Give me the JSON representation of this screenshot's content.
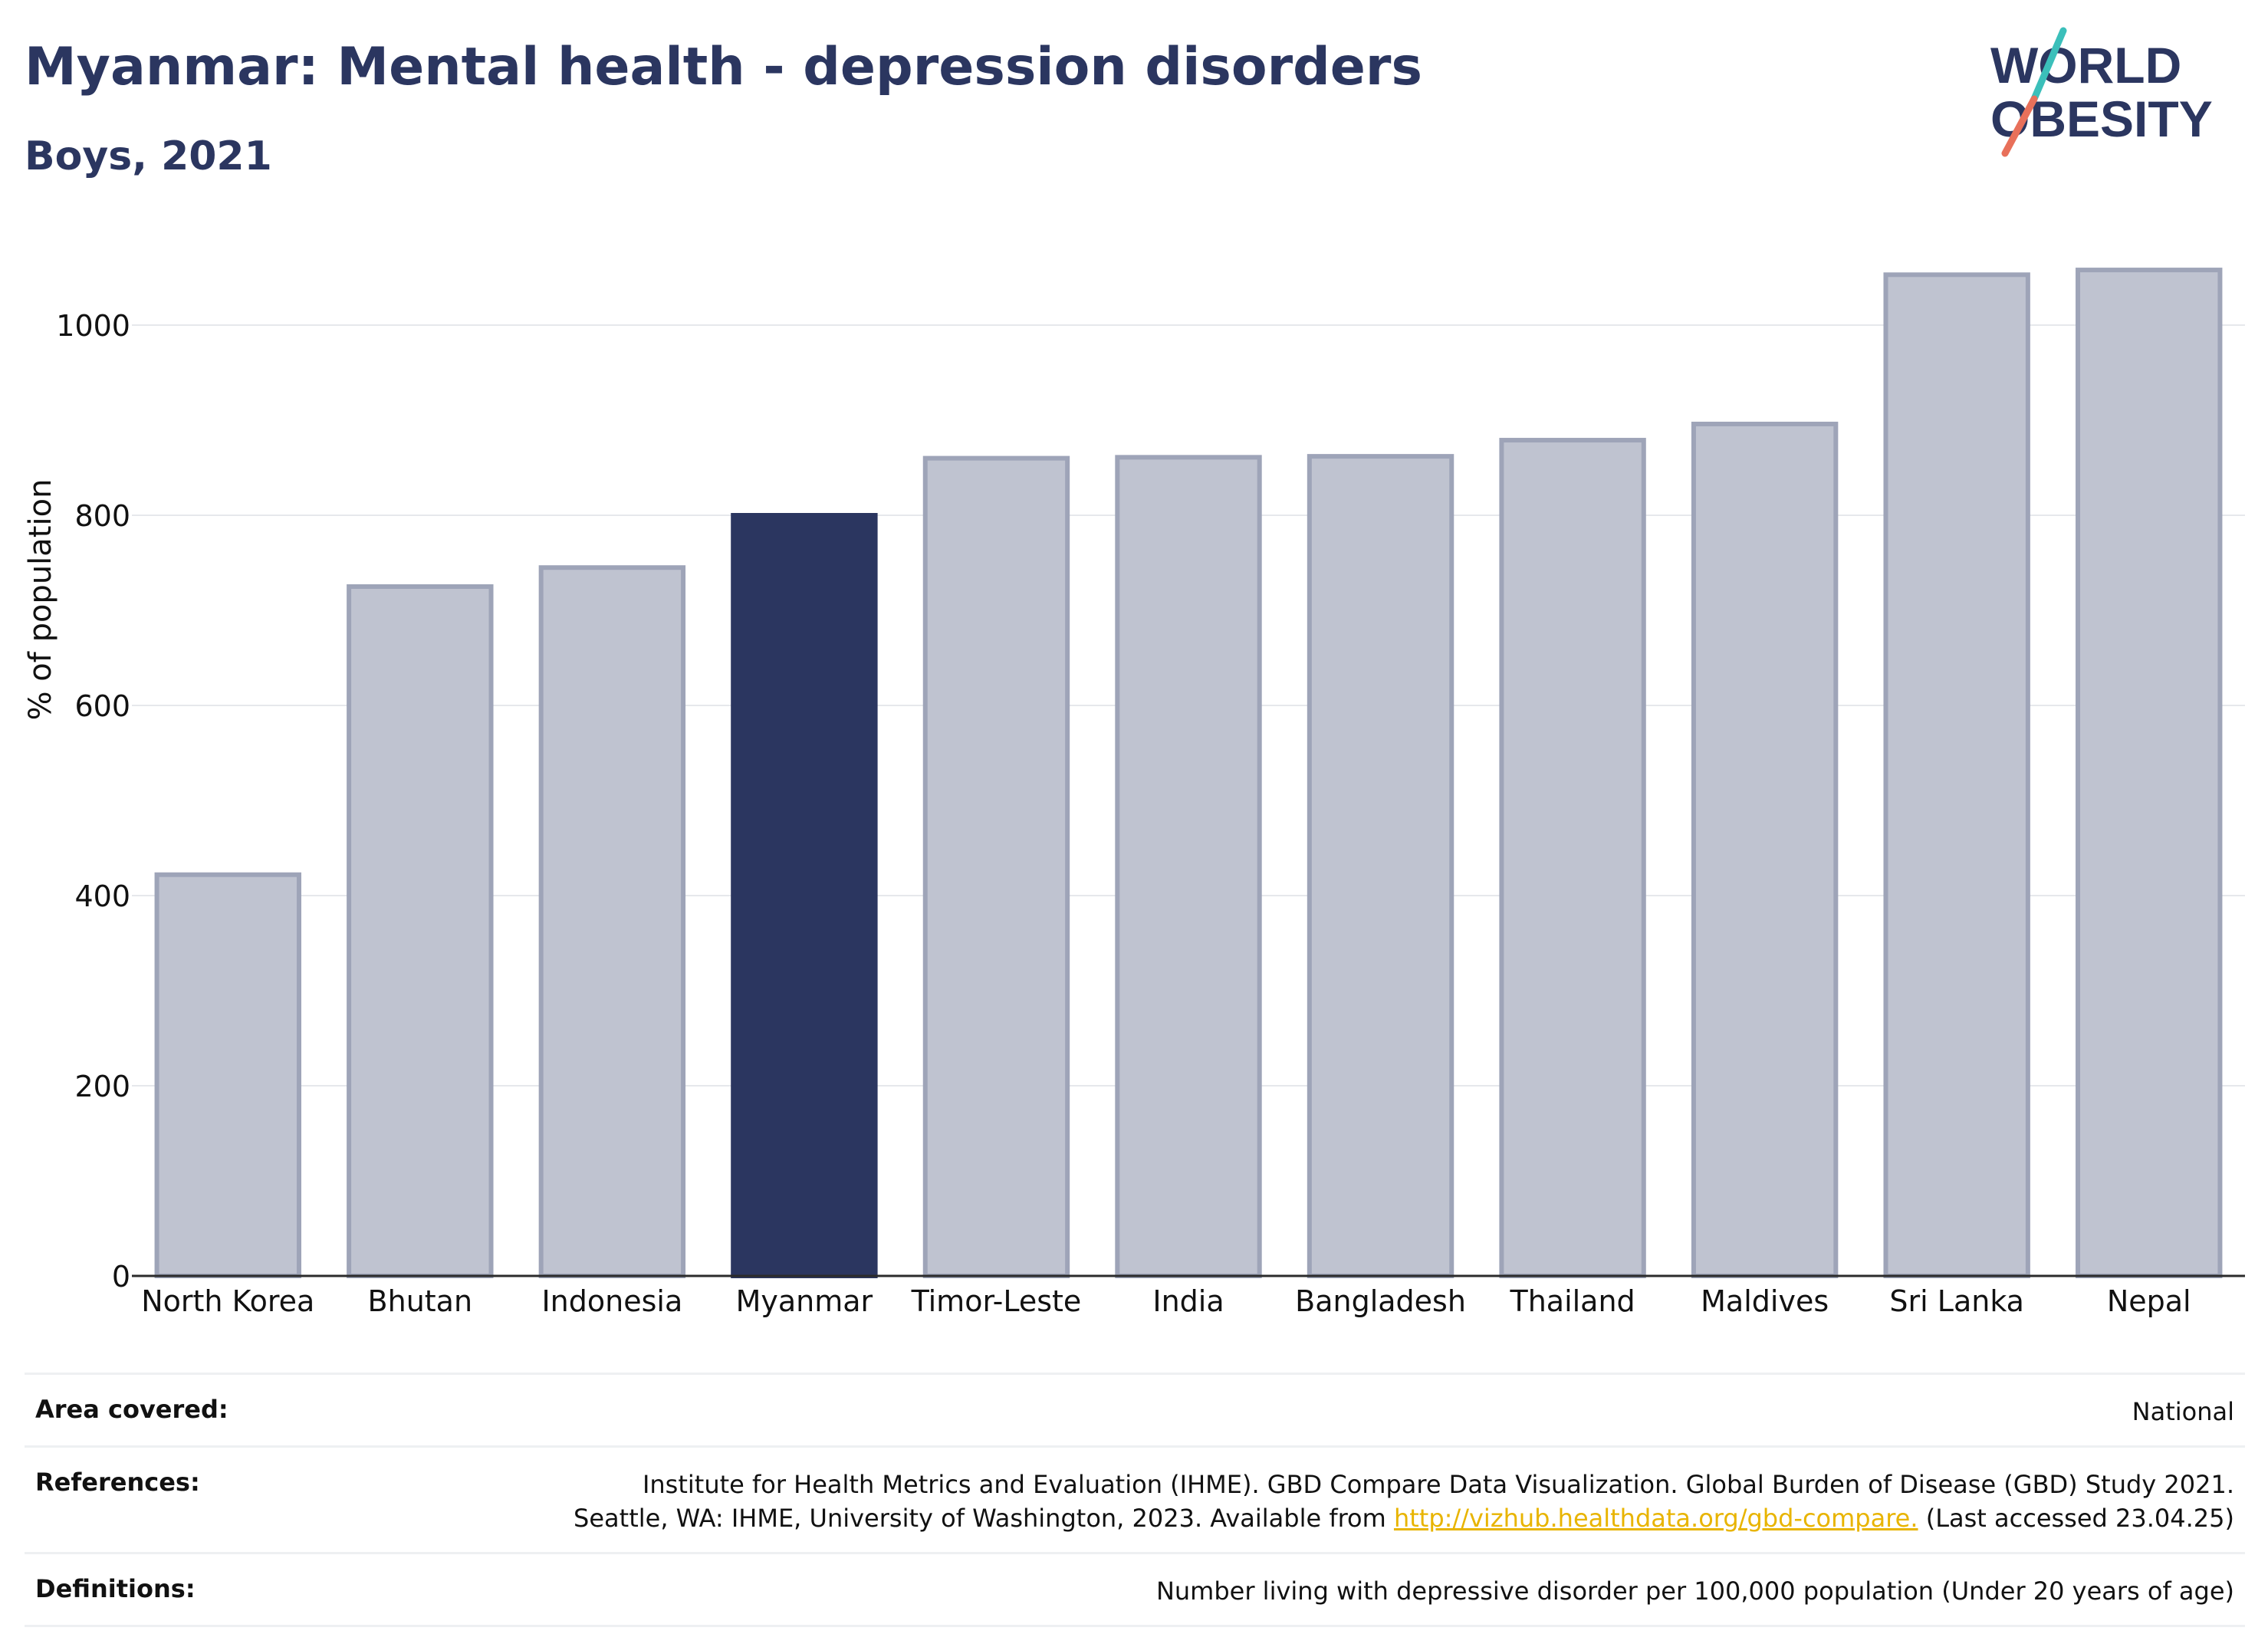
{
  "header": {
    "title": "Myanmar: Mental health - depression disorders",
    "subtitle": "Boys, 2021"
  },
  "logo": {
    "line1": "WORLD",
    "line2": "OBESITY"
  },
  "colors": {
    "highlight": "#2b3660",
    "other": "#bfc3d0",
    "other_border": "#9ea4b8",
    "text": "#2b3660",
    "link": "#e8b400"
  },
  "chart_data": {
    "type": "bar",
    "title": "Myanmar: Mental health - depression disorders",
    "subtitle": "Boys, 2021",
    "ylabel": "% of population",
    "xlabel": "",
    "categories": [
      "North Korea",
      "Bhutan",
      "Indonesia",
      "Myanmar",
      "Timor-Leste",
      "India",
      "Bangladesh",
      "Thailand",
      "Maldives",
      "Sri Lanka",
      "Nepal"
    ],
    "values": [
      422,
      725,
      745,
      800,
      860,
      861,
      862,
      879,
      896,
      1053,
      1058
    ],
    "highlight": "Myanmar",
    "ylim": [
      0,
      1100
    ],
    "yticks": [
      0,
      200,
      400,
      600,
      800,
      1000
    ],
    "grid": true,
    "legend": "none"
  },
  "footer": {
    "area_label": "Area covered:",
    "area_value": "National",
    "references_label": "References:",
    "references_line1": "Institute for Health Metrics and Evaluation (IHME). GBD Compare Data Visualization. Global Burden of Disease (GBD) Study 2021.",
    "references_line2_pre": "Seattle, WA: IHME, University of Washington, 2023. Available from ",
    "references_link": "http://vizhub.healthdata.org/gbd-compare.",
    "references_line2_post": " (Last accessed 23.04.25)",
    "definitions_label": "Definitions:",
    "definitions_value": "Number living with depressive disorder per 100,000 population (Under 20 years of age)"
  }
}
